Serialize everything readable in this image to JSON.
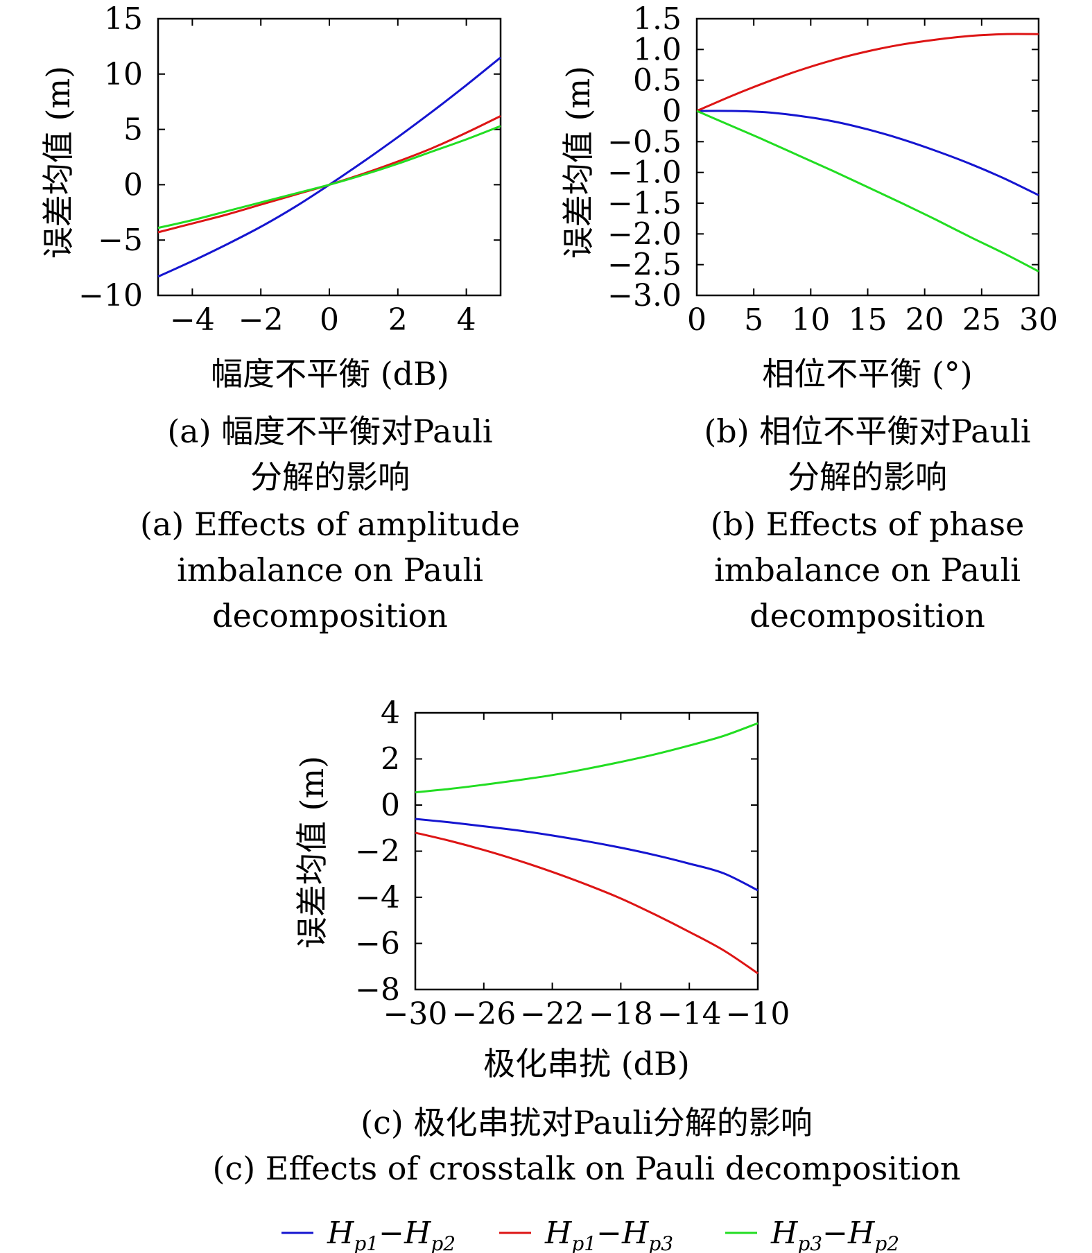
{
  "chart_data": [
    {
      "id": "a",
      "type": "line",
      "xlabel": "幅度不平衡 (dB)",
      "ylabel": "误差均值 (m)",
      "xlim": [
        -5,
        5
      ],
      "ylim": [
        -10,
        15
      ],
      "xticks": [
        -4,
        -2,
        0,
        2,
        4
      ],
      "yticks": [
        -10,
        -5,
        0,
        5,
        10,
        15
      ],
      "caption_cn": [
        "(a) 幅度不平衡对Pauli",
        "分解的影响"
      ],
      "caption_en": [
        "(a) Effects of amplitude",
        "imbalance on Pauli",
        "decomposition"
      ],
      "series": [
        {
          "key": "hp1_hp2",
          "color": "#1515d0",
          "x": [
            -5,
            -4,
            -3,
            -2,
            -1,
            0,
            1,
            2,
            3,
            4,
            5
          ],
          "y": [
            -8.3,
            -6.9,
            -5.4,
            -3.8,
            -2.0,
            0,
            2.1,
            4.3,
            6.6,
            9.0,
            11.5
          ]
        },
        {
          "key": "hp1_hp3",
          "color": "#dd1515",
          "x": [
            -5,
            -4,
            -3,
            -2,
            -1,
            0,
            1,
            2,
            3,
            4,
            5
          ],
          "y": [
            -4.3,
            -3.5,
            -2.7,
            -1.8,
            -0.9,
            0,
            1.0,
            2.1,
            3.3,
            4.7,
            6.2
          ]
        },
        {
          "key": "hp3_hp2",
          "color": "#22dd22",
          "x": [
            -5,
            -4,
            -3,
            -2,
            -1,
            0,
            1,
            2,
            3,
            4,
            5
          ],
          "y": [
            -3.9,
            -3.2,
            -2.4,
            -1.6,
            -0.8,
            0,
            0.9,
            1.9,
            3.0,
            4.1,
            5.3
          ]
        }
      ]
    },
    {
      "id": "b",
      "type": "line",
      "xlabel": "相位不平衡 (°)",
      "ylabel": "误差均值 (m)",
      "xlim": [
        0,
        30
      ],
      "ylim": [
        -3.0,
        1.5
      ],
      "xticks": [
        0,
        5,
        10,
        15,
        20,
        25,
        30
      ],
      "yticks": [
        -3.0,
        -2.5,
        -2.0,
        -1.5,
        -1.0,
        -0.5,
        0,
        0.5,
        1.0,
        1.5
      ],
      "ytick_labels": [
        "−3.0",
        "−2.5",
        "−2.0",
        "−1.5",
        "−1.0",
        "−0.5",
        "0",
        "0.5",
        "1.0",
        "1.5"
      ],
      "caption_cn": [
        "(b) 相位不平衡对Pauli",
        "分解的影响"
      ],
      "caption_en": [
        "(b) Effects of phase",
        "imbalance on Pauli",
        "decomposition"
      ],
      "series": [
        {
          "key": "hp1_hp2",
          "color": "#1515d0",
          "x": [
            0,
            3,
            6,
            9,
            12,
            15,
            18,
            21,
            24,
            27,
            30
          ],
          "y": [
            0,
            0.0,
            -0.02,
            -0.08,
            -0.17,
            -0.3,
            -0.46,
            -0.65,
            -0.86,
            -1.1,
            -1.37
          ]
        },
        {
          "key": "hp1_hp3",
          "color": "#dd1515",
          "x": [
            0,
            3,
            6,
            9,
            12,
            15,
            18,
            21,
            24,
            27,
            30
          ],
          "y": [
            0,
            0.24,
            0.46,
            0.66,
            0.83,
            0.97,
            1.08,
            1.16,
            1.22,
            1.25,
            1.25
          ]
        },
        {
          "key": "hp3_hp2",
          "color": "#22dd22",
          "x": [
            0,
            3,
            6,
            9,
            12,
            15,
            18,
            21,
            24,
            27,
            30
          ],
          "y": [
            0,
            -0.24,
            -0.48,
            -0.73,
            -0.98,
            -1.24,
            -1.5,
            -1.77,
            -2.05,
            -2.32,
            -2.61
          ]
        }
      ]
    },
    {
      "id": "c",
      "type": "line",
      "xlabel": "极化串扰 (dB)",
      "ylabel": "误差均值 (m)",
      "xlim": [
        -30,
        -10
      ],
      "ylim": [
        -8,
        4
      ],
      "xticks": [
        -30,
        -26,
        -22,
        -18,
        -14,
        -10
      ],
      "yticks": [
        -8,
        -6,
        -4,
        -2,
        0,
        2,
        4
      ],
      "caption_cn": [
        "(c) 极化串扰对Pauli分解的影响"
      ],
      "caption_en": [
        "(c) Effects of crosstalk on Pauli decomposition"
      ],
      "series": [
        {
          "key": "hp1_hp2",
          "color": "#1515d0",
          "x": [
            -30,
            -28,
            -26,
            -24,
            -22,
            -20,
            -18,
            -16,
            -14,
            -12,
            -10
          ],
          "y": [
            -0.6,
            -0.75,
            -0.92,
            -1.1,
            -1.32,
            -1.57,
            -1.85,
            -2.17,
            -2.54,
            -2.96,
            -3.7
          ]
        },
        {
          "key": "hp1_hp3",
          "color": "#dd1515",
          "x": [
            -30,
            -28,
            -26,
            -24,
            -22,
            -20,
            -18,
            -16,
            -14,
            -12,
            -10
          ],
          "y": [
            -1.2,
            -1.55,
            -1.95,
            -2.4,
            -2.9,
            -3.45,
            -4.05,
            -4.75,
            -5.5,
            -6.3,
            -7.3
          ]
        },
        {
          "key": "hp3_hp2",
          "color": "#22dd22",
          "x": [
            -30,
            -28,
            -26,
            -24,
            -22,
            -20,
            -18,
            -16,
            -14,
            -12,
            -10
          ],
          "y": [
            0.55,
            0.7,
            0.88,
            1.08,
            1.3,
            1.57,
            1.87,
            2.2,
            2.58,
            3.0,
            3.55
          ]
        }
      ]
    }
  ],
  "legend": [
    {
      "key": "hp1_hp2",
      "color": "#1515d0",
      "label": "Hp1−Hp2",
      "a": "H",
      "a_sub": "p1",
      "dash": "−",
      "b": "H",
      "b_sub": "p2"
    },
    {
      "key": "hp1_hp3",
      "color": "#dd1515",
      "label": "Hp1−Hp3",
      "a": "H",
      "a_sub": "p1",
      "dash": "−",
      "b": "H",
      "b_sub": "p3"
    },
    {
      "key": "hp3_hp2",
      "color": "#22dd22",
      "label": "Hp3−Hp2",
      "a": "H",
      "a_sub": "p3",
      "dash": "−",
      "b": "H",
      "b_sub": "p2"
    }
  ]
}
